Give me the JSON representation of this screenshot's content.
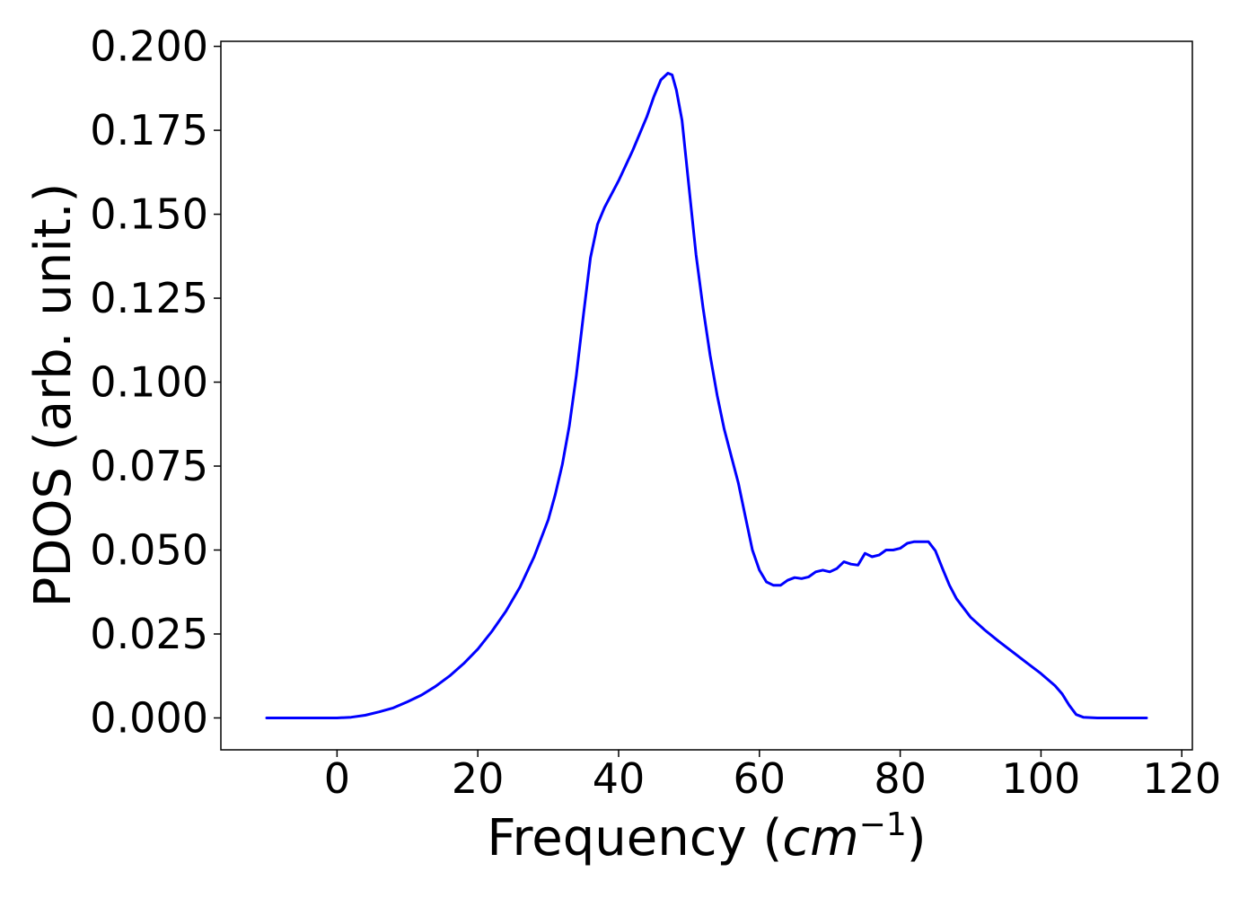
{
  "chart_data": {
    "type": "line",
    "title": "",
    "xlabel": {
      "prefix": "Frequency (",
      "math": "cm",
      "superscript": "−1",
      "suffix": ")"
    },
    "ylabel": "PDOS (arb. unit.)",
    "xlim": [
      -16.5,
      121.5
    ],
    "ylim": [
      -0.0095,
      0.2015
    ],
    "xticks": [
      0,
      20,
      40,
      60,
      80,
      100,
      120
    ],
    "xtick_labels": [
      "0",
      "20",
      "40",
      "60",
      "80",
      "100",
      "120"
    ],
    "yticks": [
      0.0,
      0.025,
      0.05,
      0.075,
      0.1,
      0.125,
      0.15,
      0.175,
      0.2
    ],
    "ytick_labels": [
      "0.000",
      "0.025",
      "0.050",
      "0.075",
      "0.100",
      "0.125",
      "0.150",
      "0.175",
      "0.200"
    ],
    "grid": false,
    "series": [
      {
        "color": "#0000ff",
        "x": [
          -10,
          -5,
          0,
          2,
          4,
          6,
          8,
          10,
          12,
          14,
          16,
          18,
          20,
          22,
          24,
          26,
          28,
          30,
          31,
          32,
          33,
          34,
          35,
          36,
          37,
          38,
          40,
          42,
          44,
          45,
          46,
          47,
          47.6,
          48.2,
          49,
          50,
          51,
          52,
          53,
          54,
          55,
          56,
          57,
          58,
          59,
          60,
          61,
          62,
          63,
          64,
          65,
          66,
          67,
          68,
          69,
          70,
          71,
          72,
          73,
          74,
          75,
          76,
          77,
          78,
          79,
          80,
          81,
          82,
          83,
          84,
          85,
          86,
          87,
          88,
          90,
          92,
          94,
          96,
          98,
          100,
          102,
          103,
          104,
          105,
          106,
          108,
          110,
          115
        ],
        "y": [
          0.0,
          0.0,
          0.0,
          0.0002,
          0.0008,
          0.0018,
          0.003,
          0.0048,
          0.0068,
          0.0094,
          0.0125,
          0.0162,
          0.0205,
          0.0258,
          0.0318,
          0.039,
          0.048,
          0.059,
          0.0665,
          0.0755,
          0.087,
          0.102,
          0.12,
          0.137,
          0.147,
          0.152,
          0.16,
          0.169,
          0.179,
          0.185,
          0.19,
          0.192,
          0.1915,
          0.187,
          0.178,
          0.158,
          0.138,
          0.122,
          0.108,
          0.096,
          0.086,
          0.078,
          0.07,
          0.06,
          0.05,
          0.044,
          0.0405,
          0.0395,
          0.0395,
          0.041,
          0.0418,
          0.0415,
          0.042,
          0.0435,
          0.044,
          0.0435,
          0.0445,
          0.0465,
          0.0458,
          0.0455,
          0.049,
          0.048,
          0.0485,
          0.05,
          0.05,
          0.0505,
          0.052,
          0.0525,
          0.0525,
          0.0525,
          0.0498,
          0.0445,
          0.0395,
          0.0355,
          0.03,
          0.0262,
          0.0228,
          0.0196,
          0.0164,
          0.0132,
          0.0096,
          0.0072,
          0.0038,
          0.001,
          0.0002,
          0.0,
          0.0,
          0.0
        ]
      }
    ]
  }
}
